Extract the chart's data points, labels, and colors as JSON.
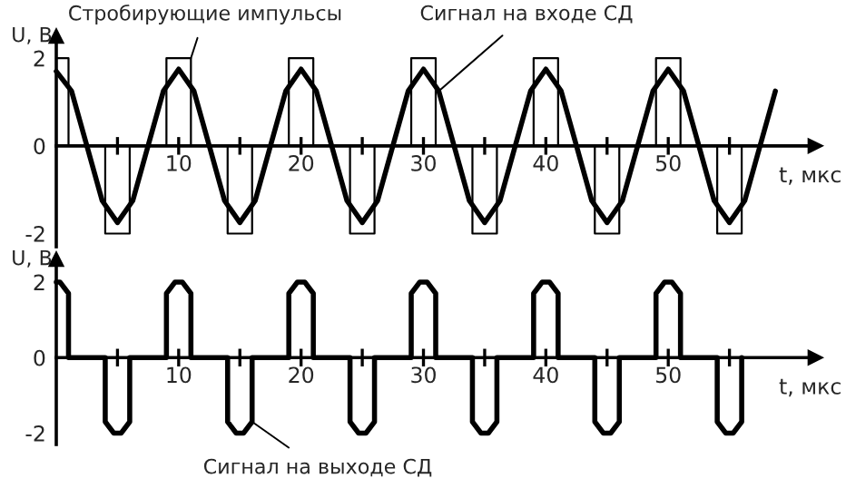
{
  "chart_data": [
    {
      "type": "line",
      "xlabel": "t, мкс",
      "ylabel": "U, В",
      "xlim": [
        0,
        62
      ],
      "ylim": [
        -2.3,
        2.5
      ],
      "yticks": [
        -2,
        0,
        2
      ],
      "xticks": [
        {
          "value": 5,
          "label": null
        },
        10,
        {
          "value": 15,
          "label": null
        },
        20,
        {
          "value": 25,
          "label": null
        },
        30,
        {
          "value": 35,
          "label": null
        },
        40,
        {
          "value": 45,
          "label": null
        },
        50,
        {
          "value": 55,
          "label": null
        }
      ],
      "grid": false,
      "marker": "none",
      "series": [
        {
          "name": "Стробирующие импульсы",
          "color": "#000000",
          "x": [
            0,
            1,
            1,
            4,
            4,
            6,
            6,
            9,
            9,
            11,
            11,
            14,
            14,
            16,
            16,
            19,
            19,
            21,
            21,
            24,
            24,
            26,
            26,
            29,
            29,
            31,
            31,
            34,
            34,
            36,
            36,
            39,
            39,
            41,
            41,
            44,
            44,
            46,
            46,
            49,
            49,
            51,
            51,
            54,
            54,
            56,
            56
          ],
          "values": [
            2,
            2,
            0,
            0,
            -2,
            -2,
            0,
            0,
            2,
            2,
            0,
            0,
            -2,
            -2,
            0,
            0,
            2,
            2,
            0,
            0,
            -2,
            -2,
            0,
            0,
            2,
            2,
            0,
            0,
            -2,
            -2,
            0,
            0,
            2,
            2,
            0,
            0,
            -2,
            -2,
            0,
            0,
            2,
            2,
            0,
            0,
            -2,
            -2,
            0
          ]
        },
        {
          "name": "Сигнал на входе СД",
          "color": "#000000",
          "x": [
            0,
            1.25,
            2.5,
            3.75,
            5,
            6.25,
            7.5,
            8.75,
            10,
            11.25,
            12.5,
            13.75,
            15,
            16.25,
            17.5,
            18.75,
            20,
            21.25,
            22.5,
            23.75,
            25,
            26.25,
            27.5,
            28.75,
            30,
            31.25,
            32.5,
            33.75,
            35,
            36.25,
            37.5,
            38.75,
            40,
            41.25,
            42.5,
            43.75,
            45,
            46.25,
            47.5,
            48.75,
            50,
            51.25,
            52.5,
            53.75,
            55,
            56.25,
            57.5,
            58.75
          ],
          "values": [
            1.7,
            1.25,
            0,
            -1.25,
            -1.75,
            -1.25,
            0,
            1.25,
            1.75,
            1.25,
            0,
            -1.25,
            -1.75,
            -1.25,
            0,
            1.25,
            1.75,
            1.25,
            0,
            -1.25,
            -1.75,
            -1.25,
            0,
            1.25,
            1.75,
            1.25,
            0,
            -1.25,
            -1.75,
            -1.25,
            0,
            1.25,
            1.75,
            1.25,
            0,
            -1.25,
            -1.75,
            -1.25,
            0,
            1.25,
            1.75,
            1.25,
            0,
            -1.25,
            -1.75,
            -1.25,
            0,
            1.25
          ]
        }
      ]
    },
    {
      "type": "line",
      "xlabel": "t, мкс",
      "ylabel": "U, В",
      "xlim": [
        0,
        62
      ],
      "ylim": [
        -2.3,
        2.6
      ],
      "yticks": [
        -2,
        0,
        2
      ],
      "xticks": [
        {
          "value": 5,
          "label": null
        },
        10,
        {
          "value": 15,
          "label": null
        },
        20,
        {
          "value": 25,
          "label": null
        },
        30,
        {
          "value": 35,
          "label": null
        },
        40,
        {
          "value": 45,
          "label": null
        },
        50,
        {
          "value": 55,
          "label": null
        }
      ],
      "grid": false,
      "marker": "none",
      "series": [
        {
          "name": "Сигнал на выходе СД",
          "color": "#000000",
          "x": [
            0,
            0.3,
            1,
            1,
            4,
            4,
            4.7,
            5.3,
            6,
            6,
            9,
            9,
            9.7,
            10.3,
            11,
            11,
            14,
            14,
            14.7,
            15.3,
            16,
            16,
            19,
            19,
            19.7,
            20.3,
            21,
            21,
            24,
            24,
            24.7,
            25.3,
            26,
            26,
            29,
            29,
            29.7,
            30.3,
            31,
            31,
            34,
            34,
            34.7,
            35.3,
            36,
            36,
            39,
            39,
            39.7,
            40.3,
            41,
            41,
            44,
            44,
            44.7,
            45.3,
            46,
            46,
            49,
            49,
            49.7,
            50.3,
            51,
            51,
            54,
            54,
            54.7,
            55.3,
            56,
            56
          ],
          "values": [
            2,
            2,
            1.7,
            0,
            0,
            -1.7,
            -2,
            -2,
            -1.7,
            0,
            0,
            1.7,
            2,
            2,
            1.7,
            0,
            0,
            -1.7,
            -2,
            -2,
            -1.7,
            0,
            0,
            1.7,
            2,
            2,
            1.7,
            0,
            0,
            -1.7,
            -2,
            -2,
            -1.7,
            0,
            0,
            1.7,
            2,
            2,
            1.7,
            0,
            0,
            -1.7,
            -2,
            -2,
            -1.7,
            0,
            0,
            1.7,
            2,
            2,
            1.7,
            0,
            0,
            -1.7,
            -2,
            -2,
            -1.7,
            0,
            0,
            1.7,
            2,
            2,
            1.7,
            0,
            0,
            -1.7,
            -2,
            -2,
            -1.7,
            0
          ]
        }
      ]
    }
  ]
}
